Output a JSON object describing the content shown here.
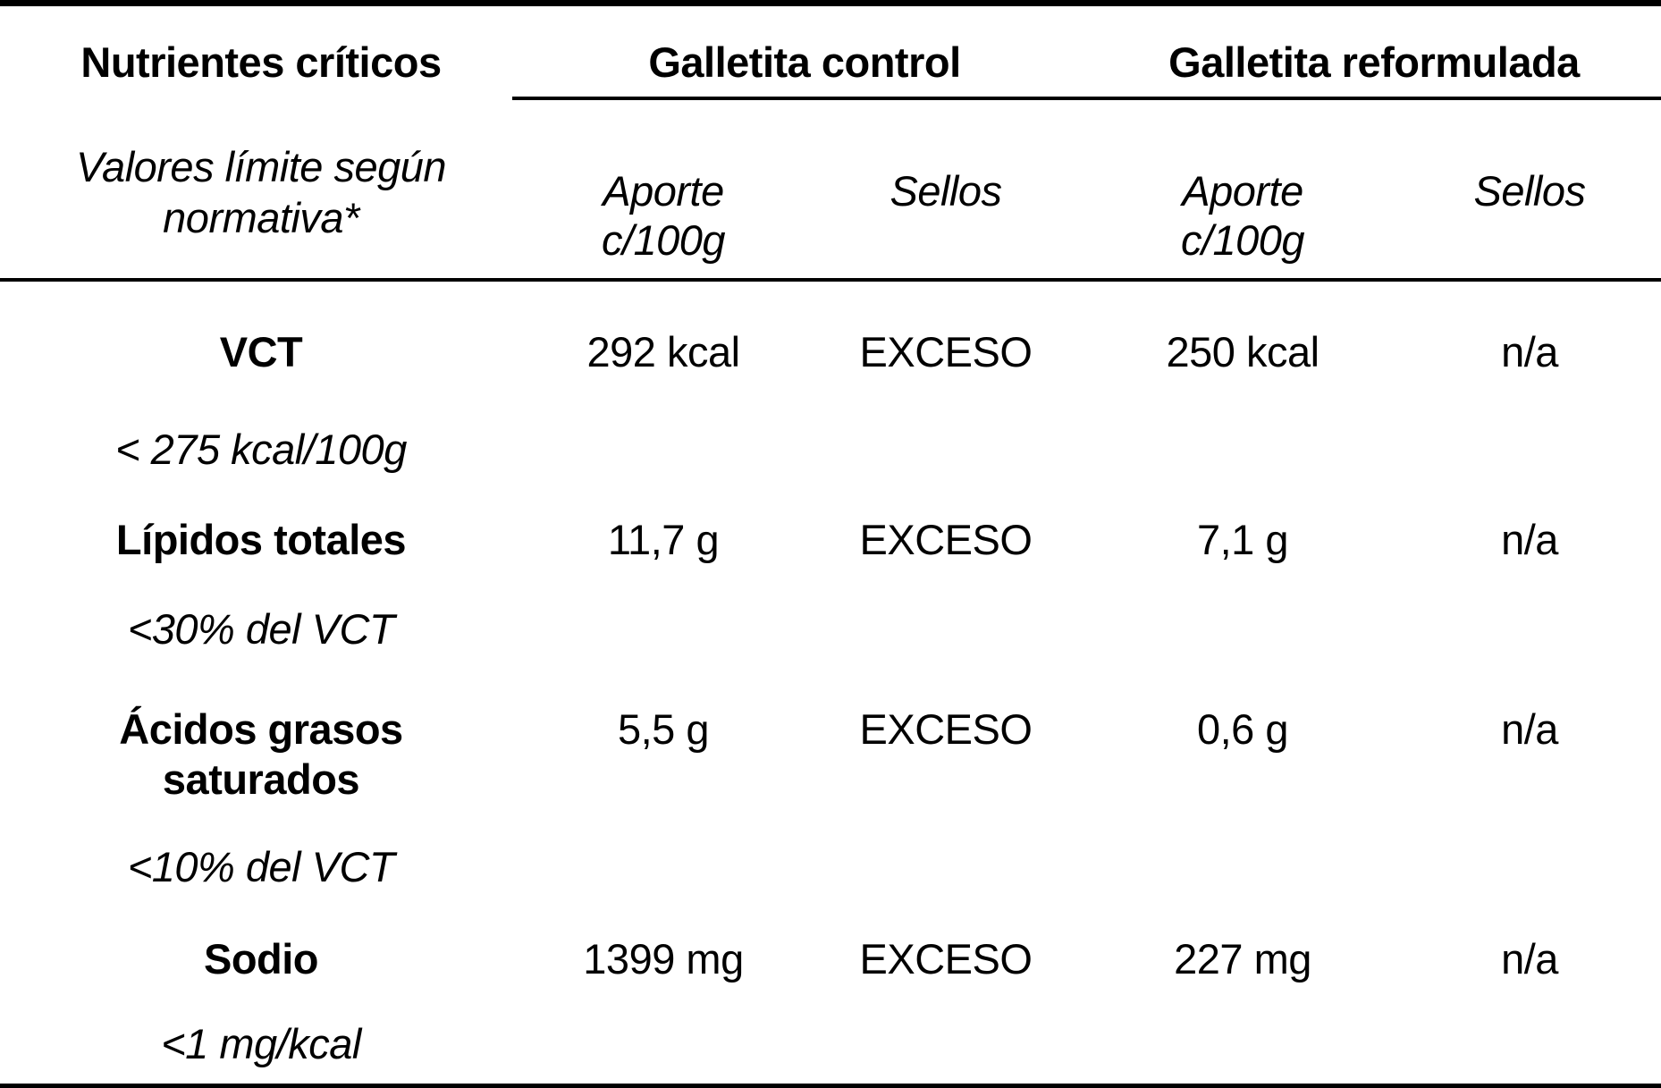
{
  "table": {
    "title_column": {
      "header": "Nutrientes críticos",
      "subheader": "Valores límite según\nnormativa*"
    },
    "groups": {
      "control": {
        "label": "Galletita control",
        "aporte_header": "Aporte\nc/100g",
        "sellos_header": "Sellos"
      },
      "reformulada": {
        "label": "Galletita reformulada",
        "aporte_header": "Aporte\nc/100g",
        "sellos_header": "Sellos"
      }
    },
    "rows": [
      {
        "nutrient": "VCT",
        "limit": "< 275 kcal/100g",
        "control_aporte": "292 kcal",
        "control_sellos": "EXCESO",
        "reformulada_aporte": "250 kcal",
        "reformulada_sellos": "n/a"
      },
      {
        "nutrient": "Lípidos totales",
        "limit": "<30% del VCT",
        "control_aporte": "11,7 g",
        "control_sellos": "EXCESO",
        "reformulada_aporte": "7,1 g",
        "reformulada_sellos": "n/a"
      },
      {
        "nutrient": "Ácidos grasos\nsaturados",
        "limit": "<10% del VCT",
        "control_aporte": "5,5 g",
        "control_sellos": "EXCESO",
        "reformulada_aporte": "0,6 g",
        "reformulada_sellos": "n/a"
      },
      {
        "nutrient": "Sodio",
        "limit": "<1 mg/kcal",
        "control_aporte": "1399 mg",
        "control_sellos": "EXCESO",
        "reformulada_aporte": "227 mg",
        "reformulada_sellos": "n/a"
      }
    ],
    "colors": {
      "text": "#000000",
      "background": "#ffffff",
      "rule": "#000000"
    }
  }
}
